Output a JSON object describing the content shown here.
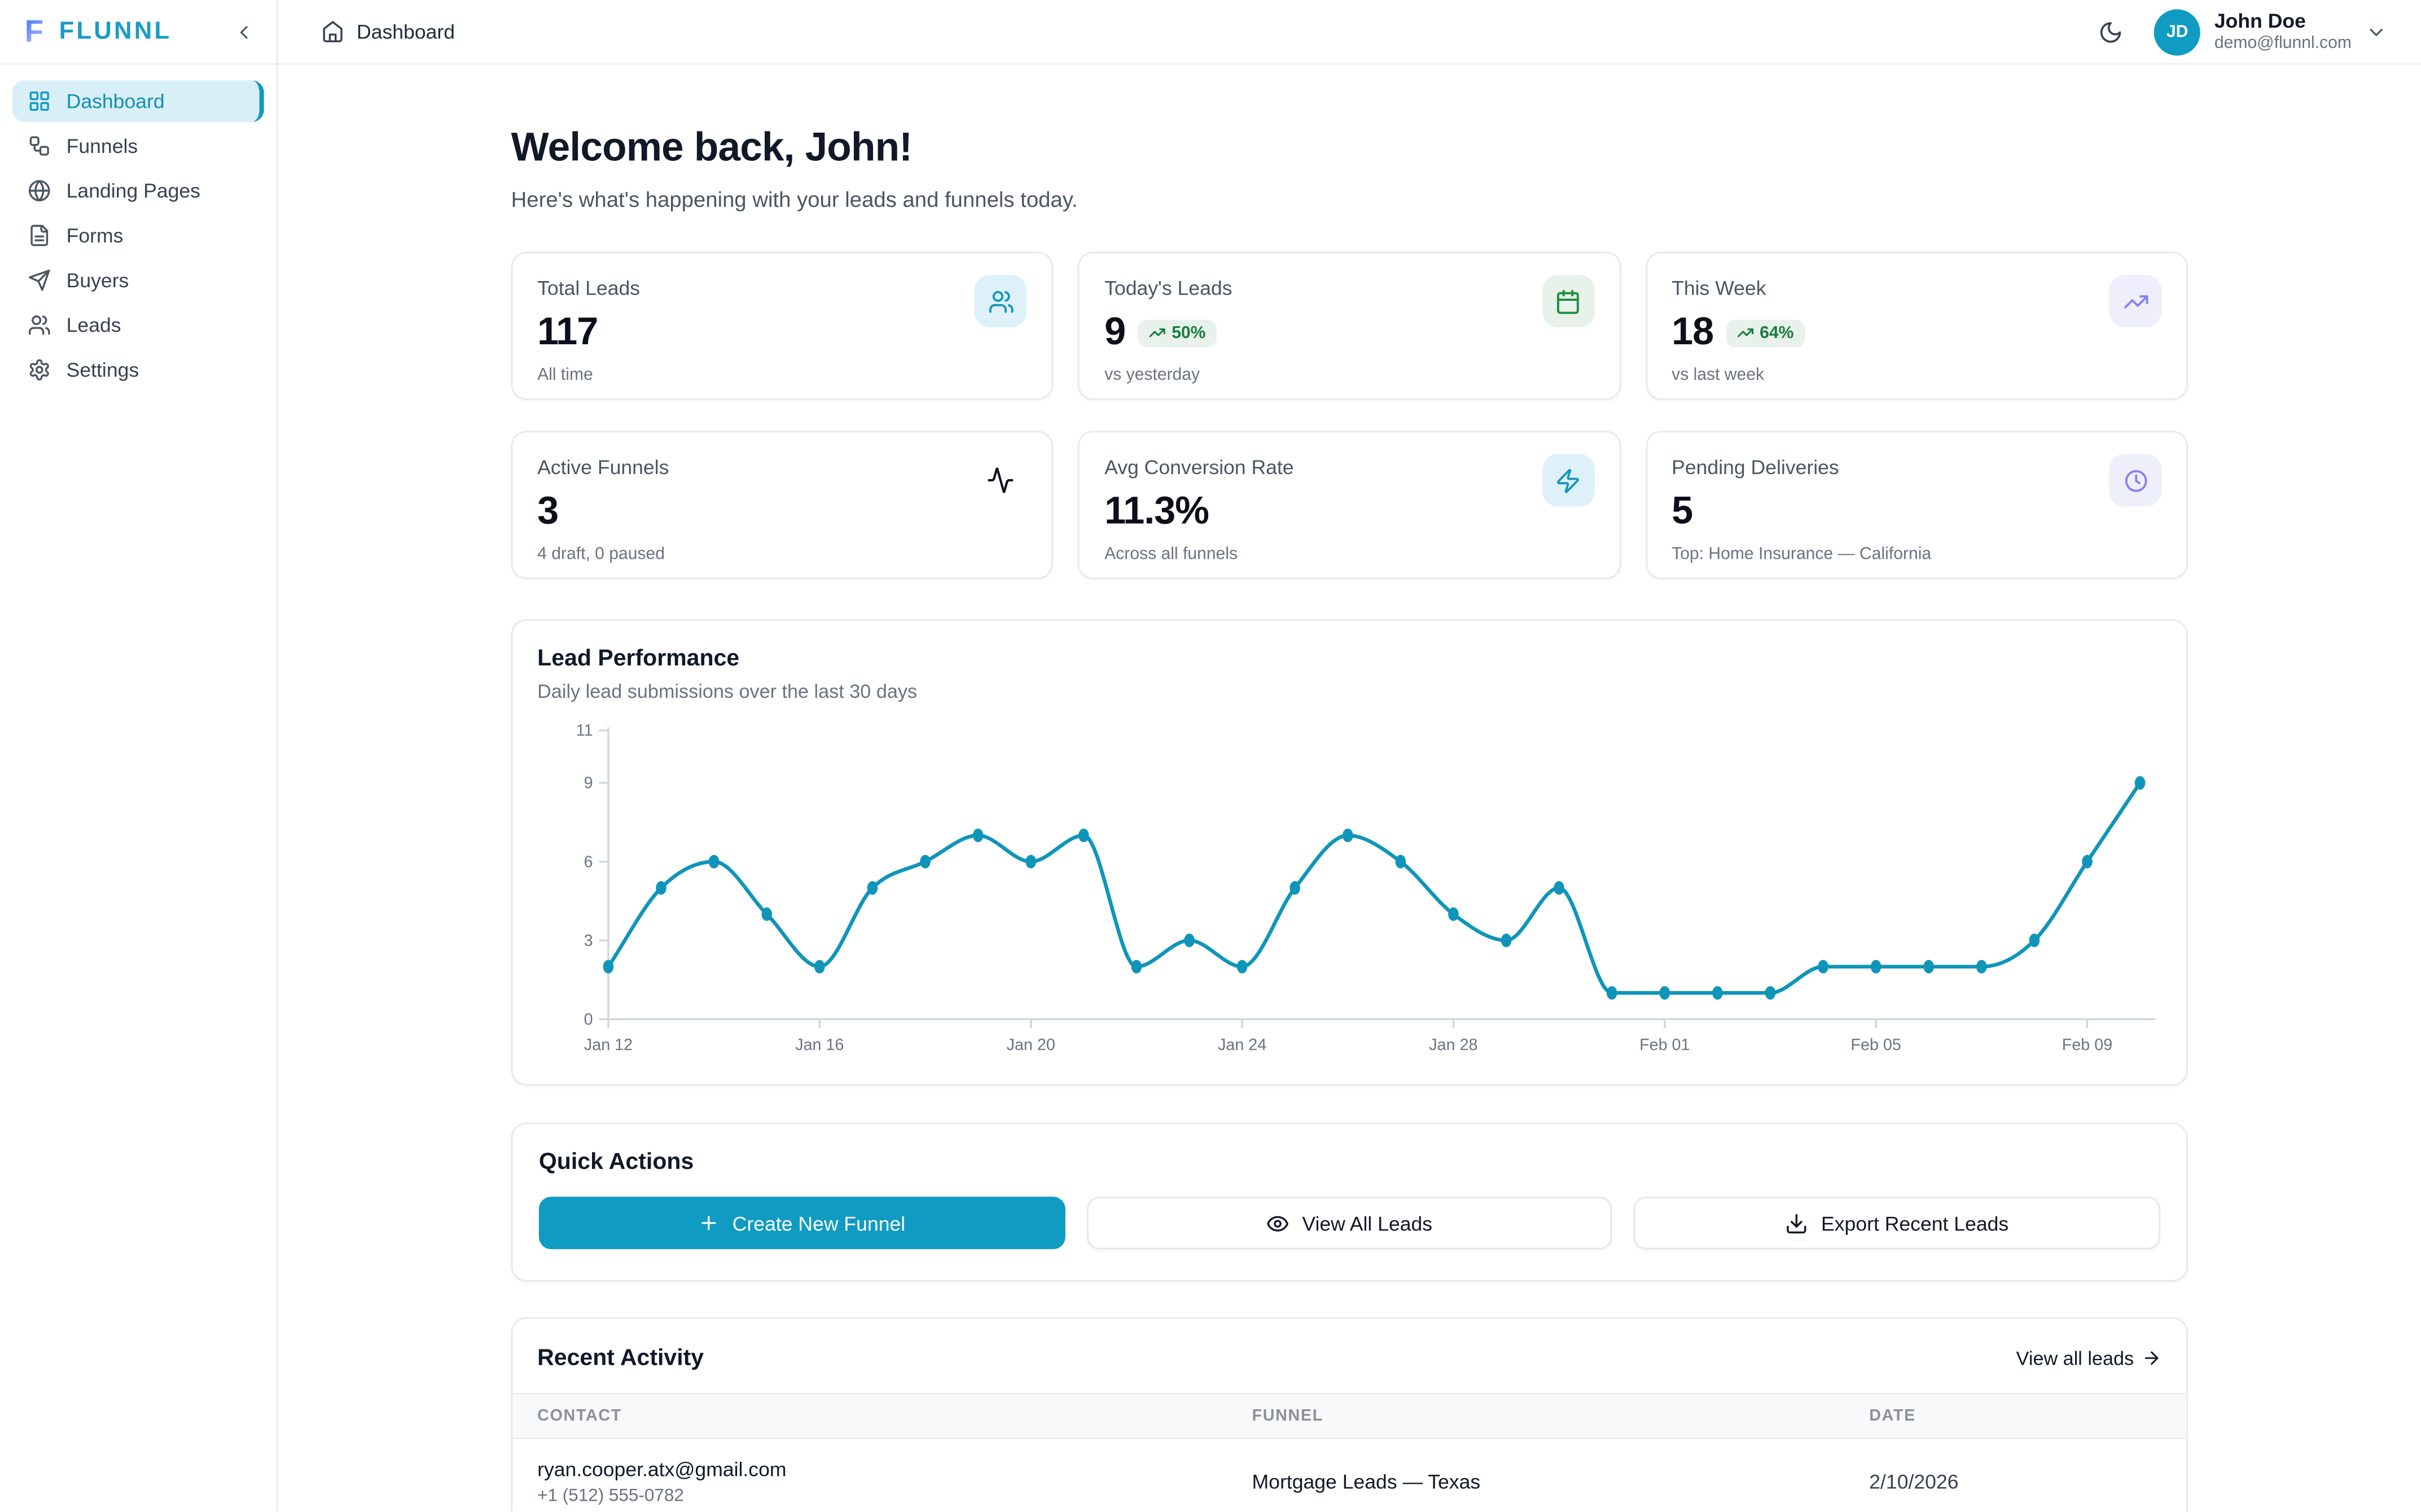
{
  "brand": {
    "logo_letter": "F",
    "name": "FLUNNL"
  },
  "sidebar": {
    "items": [
      {
        "label": "Dashboard",
        "icon": "layout-grid",
        "active": true
      },
      {
        "label": "Funnels",
        "icon": "workflow",
        "active": false
      },
      {
        "label": "Landing Pages",
        "icon": "globe",
        "active": false
      },
      {
        "label": "Forms",
        "icon": "file-text",
        "active": false
      },
      {
        "label": "Buyers",
        "icon": "send",
        "active": false
      },
      {
        "label": "Leads",
        "icon": "users",
        "active": false
      },
      {
        "label": "Settings",
        "icon": "settings",
        "active": false
      }
    ]
  },
  "header": {
    "breadcrumb": "Dashboard",
    "user_name": "John Doe",
    "user_email": "demo@flunnl.com",
    "user_initials": "JD"
  },
  "welcome": {
    "title": "Welcome back, John!",
    "subtitle": "Here's what's happening with your leads and funnels today."
  },
  "stats": [
    {
      "label": "Total Leads",
      "value": "117",
      "sub": "All time",
      "icon": "users",
      "accent": "teal"
    },
    {
      "label": "Today's Leads",
      "value": "9",
      "badge": "50%",
      "sub": "vs yesterday",
      "icon": "calendar",
      "accent": "green"
    },
    {
      "label": "This Week",
      "value": "18",
      "badge": "64%",
      "sub": "vs last week",
      "icon": "trending-up",
      "accent": "purple"
    },
    {
      "label": "Active Funnels",
      "value": "3",
      "sub": "4 draft, 0 paused",
      "icon": "activity",
      "accent": "none"
    },
    {
      "label": "Avg Conversion Rate",
      "value": "11.3%",
      "sub": "Across all funnels",
      "icon": "zap",
      "accent": "teal"
    },
    {
      "label": "Pending Deliveries",
      "value": "5",
      "sub": "Top: Home Insurance — California",
      "icon": "clock",
      "accent": "purple"
    }
  ],
  "chart_data": {
    "type": "line",
    "title": "Lead Performance",
    "subtitle": "Daily lead submissions over the last 30 days",
    "x": [
      "Jan 12",
      "Jan 13",
      "Jan 14",
      "Jan 15",
      "Jan 16",
      "Jan 17",
      "Jan 18",
      "Jan 19",
      "Jan 20",
      "Jan 21",
      "Jan 22",
      "Jan 23",
      "Jan 24",
      "Jan 25",
      "Jan 26",
      "Jan 27",
      "Jan 28",
      "Jan 29",
      "Jan 30",
      "Jan 31",
      "Feb 01",
      "Feb 02",
      "Feb 03",
      "Feb 04",
      "Feb 05",
      "Feb 06",
      "Feb 07",
      "Feb 08",
      "Feb 09",
      "Feb 10"
    ],
    "values": [
      2,
      5,
      6,
      4,
      2,
      5,
      6,
      7,
      6,
      7,
      2,
      3,
      2,
      5,
      7,
      6,
      4,
      3,
      5,
      1,
      1,
      1,
      1,
      2,
      2,
      2,
      2,
      3,
      6,
      9
    ],
    "yticks": [
      0,
      3,
      6,
      9,
      11
    ],
    "xtick_every": 4,
    "ylim": [
      0,
      11
    ],
    "xlabel": "",
    "ylabel": "",
    "grid": false,
    "legend": "none",
    "line_color": "#1095ba"
  },
  "quick_actions": {
    "title": "Quick Actions",
    "buttons": [
      {
        "label": "Create New Funnel",
        "icon": "plus",
        "variant": "primary"
      },
      {
        "label": "View All Leads",
        "icon": "eye",
        "variant": "secondary"
      },
      {
        "label": "Export Recent Leads",
        "icon": "download",
        "variant": "secondary"
      }
    ]
  },
  "recent_activity": {
    "title": "Recent Activity",
    "view_all_label": "View all leads",
    "columns": [
      "CONTACT",
      "FUNNEL",
      "DATE"
    ],
    "rows": [
      {
        "email": "ryan.cooper.atx@gmail.com",
        "phone": "+1 (512) 555-0782",
        "funnel": "Mortgage Leads — Texas",
        "date": "2/10/2026"
      }
    ]
  },
  "colors": {
    "accent": "#109bc2",
    "accent_soft": "#d9eff8",
    "green": "#1e8e3e",
    "green_soft": "#e9f1ec",
    "purple": "#8781f3",
    "purple_soft": "#eeeffb",
    "border": "#e7e9ec"
  }
}
